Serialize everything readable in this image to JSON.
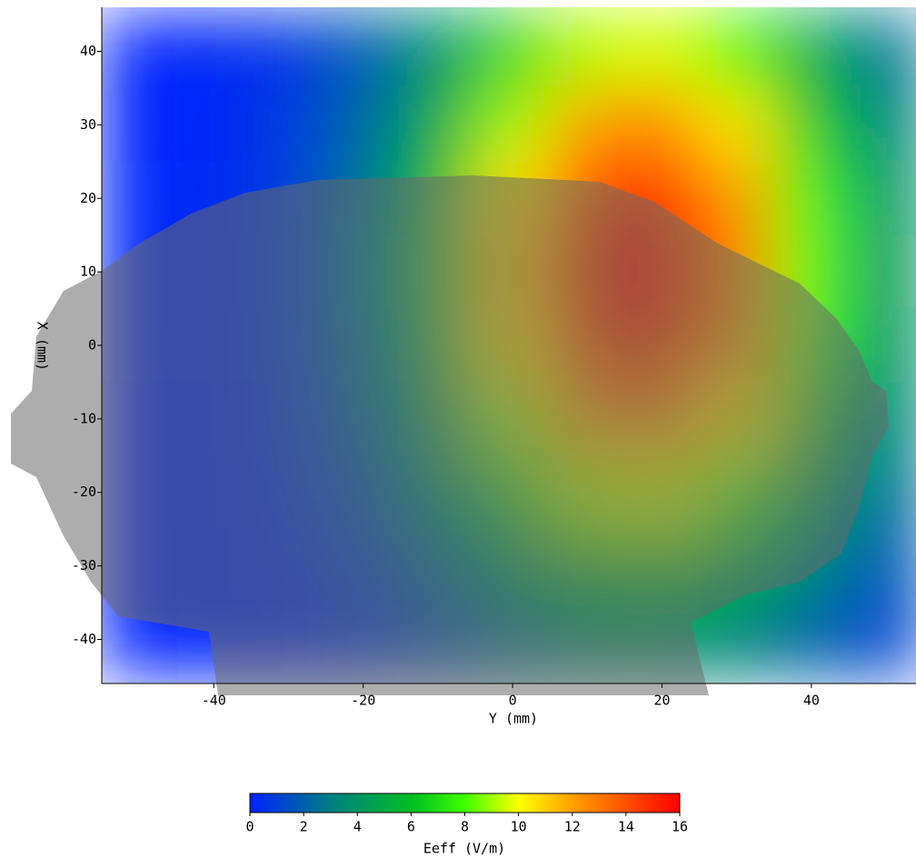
{
  "chart_data": {
    "type": "heatmap",
    "x_label": "Y (mm)",
    "y_label": "X (mm)",
    "x": [
      -50,
      -40,
      -30,
      -20,
      -10,
      0,
      10,
      20,
      30,
      40,
      50
    ],
    "y": [
      40,
      30,
      20,
      10,
      0,
      -10,
      -20,
      -30,
      -40
    ],
    "z": [
      [
        0.0,
        0.2,
        0.6,
        1.8,
        3.9,
        6.8,
        9.2,
        9.6,
        7.9,
        5.0,
        2.5
      ],
      [
        0.0,
        0.2,
        0.8,
        2.3,
        5.1,
        9.0,
        12.1,
        12.7,
        10.4,
        6.6,
        3.3
      ],
      [
        0.1,
        0.3,
        0.9,
        2.7,
        6.1,
        10.6,
        14.3,
        14.9,
        12.3,
        7.9,
        3.9
      ],
      [
        0.1,
        0.3,
        1.0,
        2.9,
        6.4,
        11.2,
        15.1,
        15.8,
        13.0,
        8.3,
        4.1
      ],
      [
        0.1,
        0.3,
        0.9,
        2.7,
        6.1,
        10.6,
        14.3,
        14.9,
        12.3,
        7.9,
        3.9
      ],
      [
        0.0,
        0.2,
        0.8,
        2.3,
        5.1,
        9.0,
        12.1,
        12.7,
        10.4,
        6.6,
        3.3
      ],
      [
        0.0,
        0.2,
        0.6,
        1.8,
        3.9,
        6.8,
        9.2,
        9.6,
        7.9,
        5.0,
        2.5
      ],
      [
        0.0,
        0.1,
        0.4,
        1.2,
        2.6,
        4.6,
        6.2,
        6.5,
        5.3,
        3.4,
        1.7
      ],
      [
        0.0,
        0.1,
        0.2,
        0.7,
        1.6,
        2.8,
        3.8,
        3.9,
        3.2,
        2.1,
        1.0
      ]
    ],
    "xlim": [
      -55,
      54
    ],
    "ylim": [
      -46,
      46
    ],
    "xticks": [
      -40,
      -20,
      0,
      20,
      40
    ],
    "yticks": [
      -40,
      -30,
      -20,
      -10,
      0,
      10,
      20,
      30,
      40
    ],
    "colorbar_label": "Eeff (V/m)",
    "clim": [
      0,
      16
    ],
    "cticks": [
      0,
      2,
      4,
      6,
      8,
      10,
      12,
      14,
      16
    ]
  }
}
